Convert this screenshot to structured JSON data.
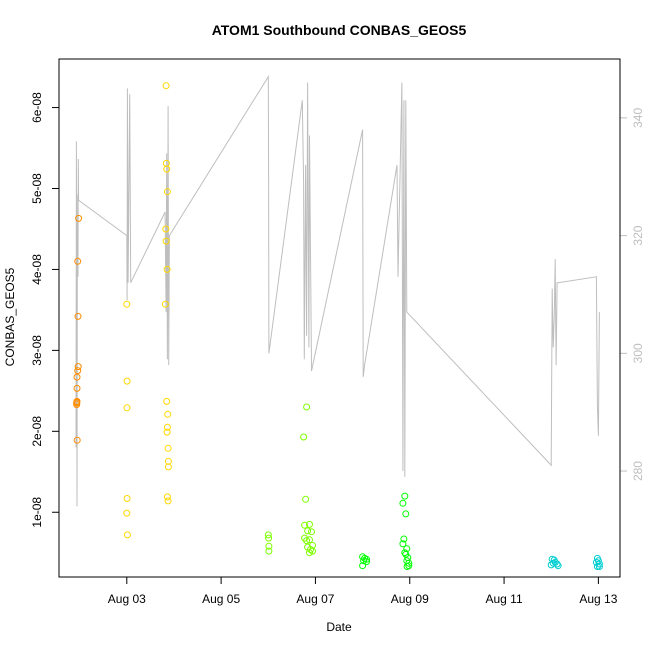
{
  "chart_data": {
    "type": "scatter",
    "title": "ATOM1 Southbound CONBAS_GEOS5",
    "xlabel": "Date",
    "ylabel": "CONBAS_GEOS5",
    "grid": false,
    "x_axis": {
      "type": "date",
      "range": [
        "2016-08-01T13:30",
        "2016-08-13T11:00"
      ],
      "ticks": [
        {
          "value": "2016-08-03",
          "label": "Aug 03"
        },
        {
          "value": "2016-08-05",
          "label": "Aug 05"
        },
        {
          "value": "2016-08-07",
          "label": "Aug 07"
        },
        {
          "value": "2016-08-09",
          "label": "Aug 09"
        },
        {
          "value": "2016-08-11",
          "label": "Aug 11"
        },
        {
          "value": "2016-08-13",
          "label": "Aug 13"
        }
      ]
    },
    "y_axis": {
      "range": [
        2e-09,
        6.6e-08
      ],
      "ticks": [
        {
          "value": 1e-08,
          "label": "1e-08"
        },
        {
          "value": 2e-08,
          "label": "2e-08"
        },
        {
          "value": 3e-08,
          "label": "3e-08"
        },
        {
          "value": 4e-08,
          "label": "4e-08"
        },
        {
          "value": 5e-08,
          "label": "5e-08"
        },
        {
          "value": 6e-08,
          "label": "6e-08"
        }
      ]
    },
    "y2_axis": {
      "label": "",
      "range": [
        262,
        350
      ],
      "color": "#bebebe",
      "ticks": [
        {
          "value": 280,
          "label": "280"
        },
        {
          "value": 300,
          "label": "300"
        },
        {
          "value": 320,
          "label": "320"
        },
        {
          "value": 340,
          "label": "340"
        }
      ]
    },
    "series": [
      {
        "marker": "open-circle",
        "color": "#ff8c00",
        "points": [
          [
            "2016-08-01T22:30",
            2.35e-08
          ],
          [
            "2016-08-01T22:30",
            2.33e-08
          ],
          [
            "2016-08-01T22:40",
            2.37e-08
          ],
          [
            "2016-08-01T22:30",
            2.36e-08
          ],
          [
            "2016-08-01T22:40",
            2.53e-08
          ],
          [
            "2016-08-01T22:40",
            2.67e-08
          ],
          [
            "2016-08-01T23:00",
            2.75e-08
          ],
          [
            "2016-08-01T23:15",
            2.8e-08
          ],
          [
            "2016-08-01T22:45",
            1.89e-08
          ],
          [
            "2016-08-01T23:00",
            4.1e-08
          ],
          [
            "2016-08-01T23:10",
            3.42e-08
          ],
          [
            "2016-08-01T23:30",
            4.63e-08
          ]
        ]
      },
      {
        "marker": "open-circle",
        "color": "#ffd700",
        "points": [
          [
            "2016-08-03T00:00",
            3.57e-08
          ],
          [
            "2016-08-03T00:10",
            2.62e-08
          ],
          [
            "2016-08-03T00:05",
            2.29e-08
          ],
          [
            "2016-08-03T00:10",
            1.17e-08
          ],
          [
            "2016-08-03T00:00",
            9.9e-09
          ],
          [
            "2016-08-03T00:20",
            7.2e-09
          ],
          [
            "2016-08-03T20:00",
            6.27e-08
          ],
          [
            "2016-08-03T20:10",
            5.31e-08
          ],
          [
            "2016-08-03T20:20",
            5.24e-08
          ],
          [
            "2016-08-03T20:40",
            4.96e-08
          ],
          [
            "2016-08-03T19:50",
            4.5e-08
          ],
          [
            "2016-08-03T20:00",
            4.35e-08
          ],
          [
            "2016-08-03T20:30",
            4e-08
          ],
          [
            "2016-08-03T19:40",
            3.57e-08
          ],
          [
            "2016-08-03T20:20",
            2.37e-08
          ],
          [
            "2016-08-03T20:50",
            2.21e-08
          ],
          [
            "2016-08-03T20:40",
            2.05e-08
          ],
          [
            "2016-08-03T20:30",
            1.99e-08
          ],
          [
            "2016-08-03T21:00",
            1.79e-08
          ],
          [
            "2016-08-03T21:10",
            1.63e-08
          ],
          [
            "2016-08-03T21:10",
            1.56e-08
          ],
          [
            "2016-08-03T20:40",
            1.19e-08
          ],
          [
            "2016-08-03T21:00",
            1.14e-08
          ]
        ]
      },
      {
        "marker": "open-circle",
        "color": "#7fff00",
        "points": [
          [
            "2016-08-06T00:00",
            7.2e-09
          ],
          [
            "2016-08-06T00:10",
            6.8e-09
          ],
          [
            "2016-08-06T00:20",
            5.8e-09
          ],
          [
            "2016-08-06T00:20",
            5.2e-09
          ],
          [
            "2016-08-06T18:00",
            1.93e-08
          ],
          [
            "2016-08-06T19:30",
            2.3e-08
          ],
          [
            "2016-08-06T19:00",
            1.16e-08
          ],
          [
            "2016-08-06T18:30",
            8.4e-09
          ],
          [
            "2016-08-06T21:00",
            8.5e-09
          ],
          [
            "2016-08-06T20:00",
            7.7e-09
          ],
          [
            "2016-08-06T22:00",
            7.6e-09
          ],
          [
            "2016-08-06T18:30",
            6.8e-09
          ],
          [
            "2016-08-06T19:30",
            6.5e-09
          ],
          [
            "2016-08-06T21:00",
            6.6e-09
          ],
          [
            "2016-08-06T22:30",
            5.9e-09
          ],
          [
            "2016-08-06T20:00",
            5.7e-09
          ],
          [
            "2016-08-06T21:30",
            5.4e-09
          ],
          [
            "2016-08-06T22:30",
            5.2e-09
          ],
          [
            "2016-08-06T21:00",
            5e-09
          ]
        ]
      },
      {
        "marker": "open-circle",
        "color": "#00ff00",
        "points": [
          [
            "2016-08-08T00:00",
            4.5e-09
          ],
          [
            "2016-08-08T01:00",
            4.3e-09
          ],
          [
            "2016-08-08T02:00",
            4.2e-09
          ],
          [
            "2016-08-08T00:30",
            4e-09
          ],
          [
            "2016-08-08T02:00",
            3.9e-09
          ],
          [
            "2016-08-08T00:00",
            3.4e-09
          ],
          [
            "2016-08-08T20:30",
            1.11e-08
          ],
          [
            "2016-08-08T21:30",
            1.2e-08
          ],
          [
            "2016-08-08T22:00",
            9.8e-09
          ],
          [
            "2016-08-08T21:00",
            6.7e-09
          ],
          [
            "2016-08-08T20:30",
            6.1e-09
          ],
          [
            "2016-08-08T22:30",
            5.5e-09
          ],
          [
            "2016-08-08T21:30",
            5e-09
          ],
          [
            "2016-08-08T22:00",
            4.8e-09
          ],
          [
            "2016-08-08T23:00",
            4.4e-09
          ],
          [
            "2016-08-08T22:30",
            4e-09
          ],
          [
            "2016-08-08T23:30",
            3.7e-09
          ],
          [
            "2016-08-08T23:30",
            3.4e-09
          ],
          [
            "2016-08-08T22:40",
            3.3e-09
          ]
        ]
      },
      {
        "marker": "open-circle",
        "color": "#00ced1",
        "points": [
          [
            "2016-08-12T00:30",
            4.2e-09
          ],
          [
            "2016-08-12T01:30",
            4.1e-09
          ],
          [
            "2016-08-12T02:00",
            3.8e-09
          ],
          [
            "2016-08-12T01:00",
            3.7e-09
          ],
          [
            "2016-08-12T03:00",
            3.6e-09
          ],
          [
            "2016-08-12T00:00",
            3.5e-09
          ],
          [
            "2016-08-12T03:30",
            3.4e-09
          ],
          [
            "2016-08-12T23:30",
            4.3e-09
          ],
          [
            "2016-08-13T00:00",
            4e-09
          ],
          [
            "2016-08-12T23:00",
            3.8e-09
          ],
          [
            "2016-08-13T00:30",
            3.6e-09
          ],
          [
            "2016-08-12T23:30",
            3.3e-09
          ],
          [
            "2016-08-13T00:30",
            3.3e-09
          ]
        ]
      }
    ],
    "secondary_line": {
      "color": "#bebebe",
      "axis": "right",
      "points": [
        [
          "2016-08-01T22:10",
          284
        ],
        [
          "2016-08-01T22:20",
          336
        ],
        [
          "2016-08-01T22:40",
          274
        ],
        [
          "2016-08-01T22:50",
          312
        ],
        [
          "2016-08-01T23:00",
          327
        ],
        [
          "2016-08-01T23:10",
          313
        ],
        [
          "2016-08-01T23:20",
          333
        ],
        [
          "2016-08-01T23:30",
          326
        ],
        [
          "2016-08-03T00:00",
          320
        ],
        [
          "2016-08-03T00:10",
          309
        ],
        [
          "2016-08-03T00:20",
          345
        ],
        [
          "2016-08-03T00:40",
          312
        ],
        [
          "2016-08-03T01:30",
          344
        ],
        [
          "2016-08-03T02:00",
          312
        ],
        [
          "2016-08-03T19:30",
          324
        ],
        [
          "2016-08-03T20:00",
          307
        ],
        [
          "2016-08-03T20:20",
          334
        ],
        [
          "2016-08-03T20:40",
          299
        ],
        [
          "2016-08-03T21:00",
          342
        ],
        [
          "2016-08-03T21:20",
          298
        ],
        [
          "2016-08-03T21:40",
          320
        ],
        [
          "2016-08-06T00:00",
          347
        ],
        [
          "2016-08-06T00:10",
          330
        ],
        [
          "2016-08-06T00:20",
          300
        ],
        [
          "2016-08-06T17:20",
          343
        ],
        [
          "2016-08-06T18:00",
          329
        ],
        [
          "2016-08-06T18:20",
          299
        ],
        [
          "2016-08-06T19:00",
          332
        ],
        [
          "2016-08-06T19:30",
          303
        ],
        [
          "2016-08-06T20:00",
          346
        ],
        [
          "2016-08-06T20:40",
          301
        ],
        [
          "2016-08-06T21:00",
          337
        ],
        [
          "2016-08-06T22:00",
          297
        ],
        [
          "2016-08-08T00:00",
          338
        ],
        [
          "2016-08-08T00:20",
          296
        ],
        [
          "2016-08-08T01:00",
          298
        ],
        [
          "2016-08-08T17:30",
          332
        ],
        [
          "2016-08-08T18:00",
          313
        ],
        [
          "2016-08-08T20:00",
          346
        ],
        [
          "2016-08-08T20:30",
          280
        ],
        [
          "2016-08-08T21:00",
          343
        ],
        [
          "2016-08-08T21:30",
          279
        ],
        [
          "2016-08-08T22:00",
          343
        ],
        [
          "2016-08-08T22:30",
          307
        ],
        [
          "2016-08-12T00:00",
          281
        ],
        [
          "2016-08-12T00:30",
          311
        ],
        [
          "2016-08-12T01:00",
          301
        ],
        [
          "2016-08-12T01:30",
          306
        ],
        [
          "2016-08-12T02:00",
          316
        ],
        [
          "2016-08-12T02:30",
          298
        ],
        [
          "2016-08-12T03:00",
          312
        ],
        [
          "2016-08-12T03:30",
          312
        ],
        [
          "2016-08-12T23:00",
          313
        ],
        [
          "2016-08-12T23:30",
          291
        ],
        [
          "2016-08-13T00:00",
          286
        ],
        [
          "2016-08-13T00:30",
          307
        ]
      ]
    }
  }
}
